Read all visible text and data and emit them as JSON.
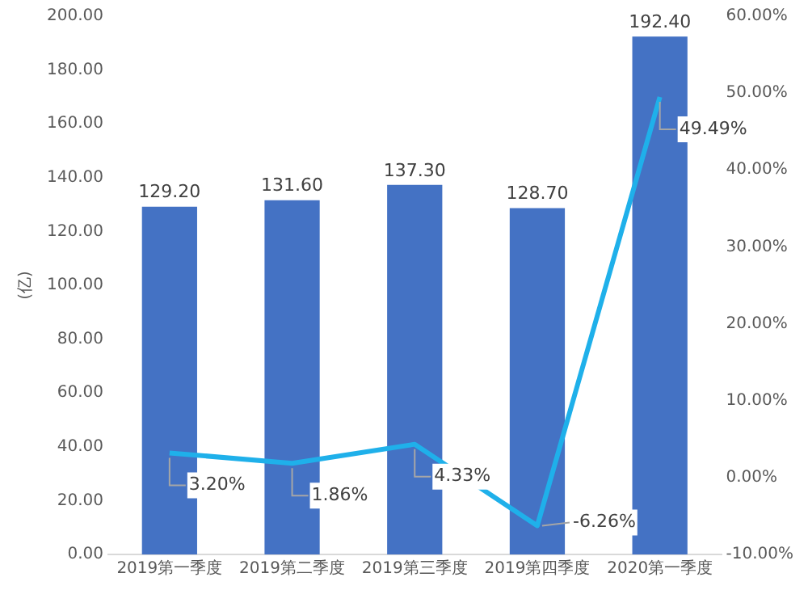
{
  "chart_data": {
    "type": "bar",
    "ylabel": "(亿)",
    "categories": [
      "2019第一季度",
      "2019第二季度",
      "2019第三季度",
      "2019第四季度",
      "2020第一季度"
    ],
    "series": [
      {
        "color": "#4472c4",
        "values": [
          129.2,
          131.6,
          137.3,
          128.7,
          192.4
        ],
        "value_labels": [
          "129.20",
          "131.60",
          "137.30",
          "128.70",
          "192.40"
        ]
      },
      {
        "type": "line",
        "axis": "y2",
        "color": "#1fb0ea",
        "values": [
          3.2,
          1.86,
          4.33,
          -6.26,
          49.49
        ],
        "value_labels": [
          "3.20%",
          "1.86%",
          "4.33%",
          "-6.26%",
          "49.49%"
        ]
      }
    ],
    "ylim": [
      0,
      200
    ],
    "yticks": [
      {
        "value": 0,
        "label": "0.00"
      },
      {
        "value": 20,
        "label": "20.00"
      },
      {
        "value": 40,
        "label": "40.00"
      },
      {
        "value": 60,
        "label": "60.00"
      },
      {
        "value": 80,
        "label": "80.00"
      },
      {
        "value": 100,
        "label": "100.00"
      },
      {
        "value": 120,
        "label": "120.00"
      },
      {
        "value": 140,
        "label": "140.00"
      },
      {
        "value": 160,
        "label": "160.00"
      },
      {
        "value": 180,
        "label": "180.00"
      },
      {
        "value": 200,
        "label": "200.00"
      }
    ],
    "y2lim": [
      -10,
      60
    ],
    "y2ticks": [
      {
        "value": -10,
        "label": "-10.00%"
      },
      {
        "value": 0,
        "label": "0.00%"
      },
      {
        "value": 10,
        "label": "10.00%"
      },
      {
        "value": 20,
        "label": "20.00%"
      },
      {
        "value": 30,
        "label": "30.00%"
      },
      {
        "value": 40,
        "label": "40.00%"
      },
      {
        "value": 50,
        "label": "50.00%"
      },
      {
        "value": 60,
        "label": "60.00%"
      }
    ],
    "grid": false,
    "legend": false,
    "marker": "none"
  }
}
